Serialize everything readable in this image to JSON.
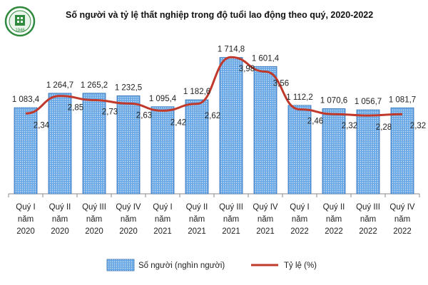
{
  "title": "Số người và tỷ lệ thất nghiệp trong độ tuổi lao động theo quý, 2020-2022",
  "logo": {
    "year_text": "1946",
    "icon": "statistics-office-logo"
  },
  "colors": {
    "bar_fill": "#4f93d8",
    "bar_border": "#2e6fb5",
    "line": "#c0392b",
    "axis": "#888888"
  },
  "chart_data": {
    "type": "bar",
    "title": "Số người và tỷ lệ thất nghiệp trong độ tuổi lao động theo quý, 2020-2022",
    "categories": [
      [
        "Quý I",
        "năm",
        "2020"
      ],
      [
        "Quý II",
        "năm",
        "2020"
      ],
      [
        "Quý III",
        "năm",
        "2020"
      ],
      [
        "Quý IV",
        "năm",
        "2020"
      ],
      [
        "Quý I",
        "năm",
        "2021"
      ],
      [
        "Quý II",
        "năm",
        "2021"
      ],
      [
        "Quý III",
        "năm",
        "2021"
      ],
      [
        "Quý IV",
        "năm",
        "2021"
      ],
      [
        "Quý I",
        "năm",
        "2022"
      ],
      [
        "Quý II",
        "năm",
        "2022"
      ],
      [
        "Quý III",
        "năm",
        "2022"
      ],
      [
        "Quý IV",
        "năm",
        "2022"
      ]
    ],
    "series": [
      {
        "name": "Số người (nghìn người)",
        "type": "bar",
        "values": [
          1083.4,
          1264.7,
          1265.2,
          1232.5,
          1095.4,
          1182.6,
          1714.8,
          1601.4,
          1112.2,
          1070.6,
          1056.7,
          1081.7
        ],
        "labels": [
          "1 083,4",
          "1 264,7",
          "1 265,2",
          "1 232,5",
          "1 095,4",
          "1 182,6",
          "1 714,8",
          "1 601,4",
          "1 112,2",
          "1 070,6",
          "1 056,7",
          "1 081,7"
        ]
      },
      {
        "name": "Tỷ lệ (%)",
        "type": "line",
        "values": [
          2.34,
          2.85,
          2.73,
          2.63,
          2.42,
          2.62,
          3.98,
          3.56,
          2.46,
          2.32,
          2.28,
          2.32
        ],
        "labels": [
          "2,34",
          "2,85",
          "2,73",
          "2,63",
          "2,42",
          "2,62",
          "3,98",
          "3,56",
          "2,46",
          "2,32",
          "2,28",
          "2,32"
        ]
      }
    ],
    "ylim_bars": [
      0,
      1900
    ],
    "ylim_rate": [
      0,
      4.4
    ],
    "grid": false,
    "legend": "bottom"
  }
}
